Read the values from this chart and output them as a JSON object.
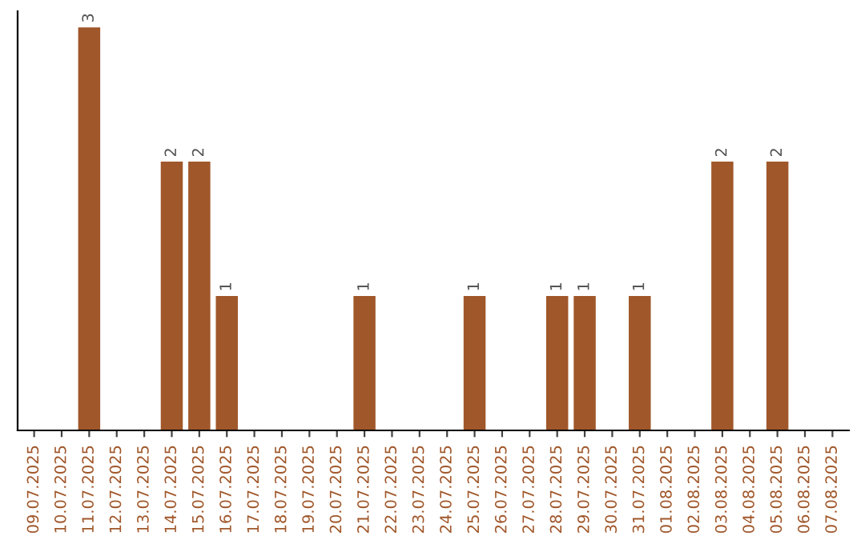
{
  "chart_data": {
    "type": "bar",
    "categories": [
      "09.07.2025",
      "10.07.2025",
      "11.07.2025",
      "12.07.2025",
      "13.07.2025",
      "14.07.2025",
      "15.07.2025",
      "16.07.2025",
      "17.07.2025",
      "18.07.2025",
      "19.07.2025",
      "20.07.2025",
      "21.07.2025",
      "22.07.2025",
      "23.07.2025",
      "24.07.2025",
      "25.07.2025",
      "26.07.2025",
      "27.07.2025",
      "28.07.2025",
      "29.07.2025",
      "30.07.2025",
      "31.07.2025",
      "01.08.2025",
      "02.08.2025",
      "03.08.2025",
      "04.08.2025",
      "05.08.2025",
      "06.08.2025",
      "07.08.2025"
    ],
    "values": [
      0,
      0,
      3,
      0,
      0,
      2,
      2,
      1,
      0,
      0,
      0,
      0,
      1,
      0,
      0,
      0,
      1,
      0,
      0,
      1,
      1,
      0,
      1,
      0,
      0,
      2,
      0,
      2,
      0,
      0
    ],
    "value_labels": [
      null,
      null,
      "3",
      null,
      null,
      "2",
      "2",
      "1",
      null,
      null,
      null,
      null,
      "1",
      null,
      null,
      null,
      "1",
      null,
      null,
      "1",
      "1",
      null,
      "1",
      null,
      null,
      "2",
      null,
      "2",
      null,
      null
    ],
    "color": "#a0572a",
    "grid": false,
    "legend": false,
    "tick_labels": "x"
  }
}
